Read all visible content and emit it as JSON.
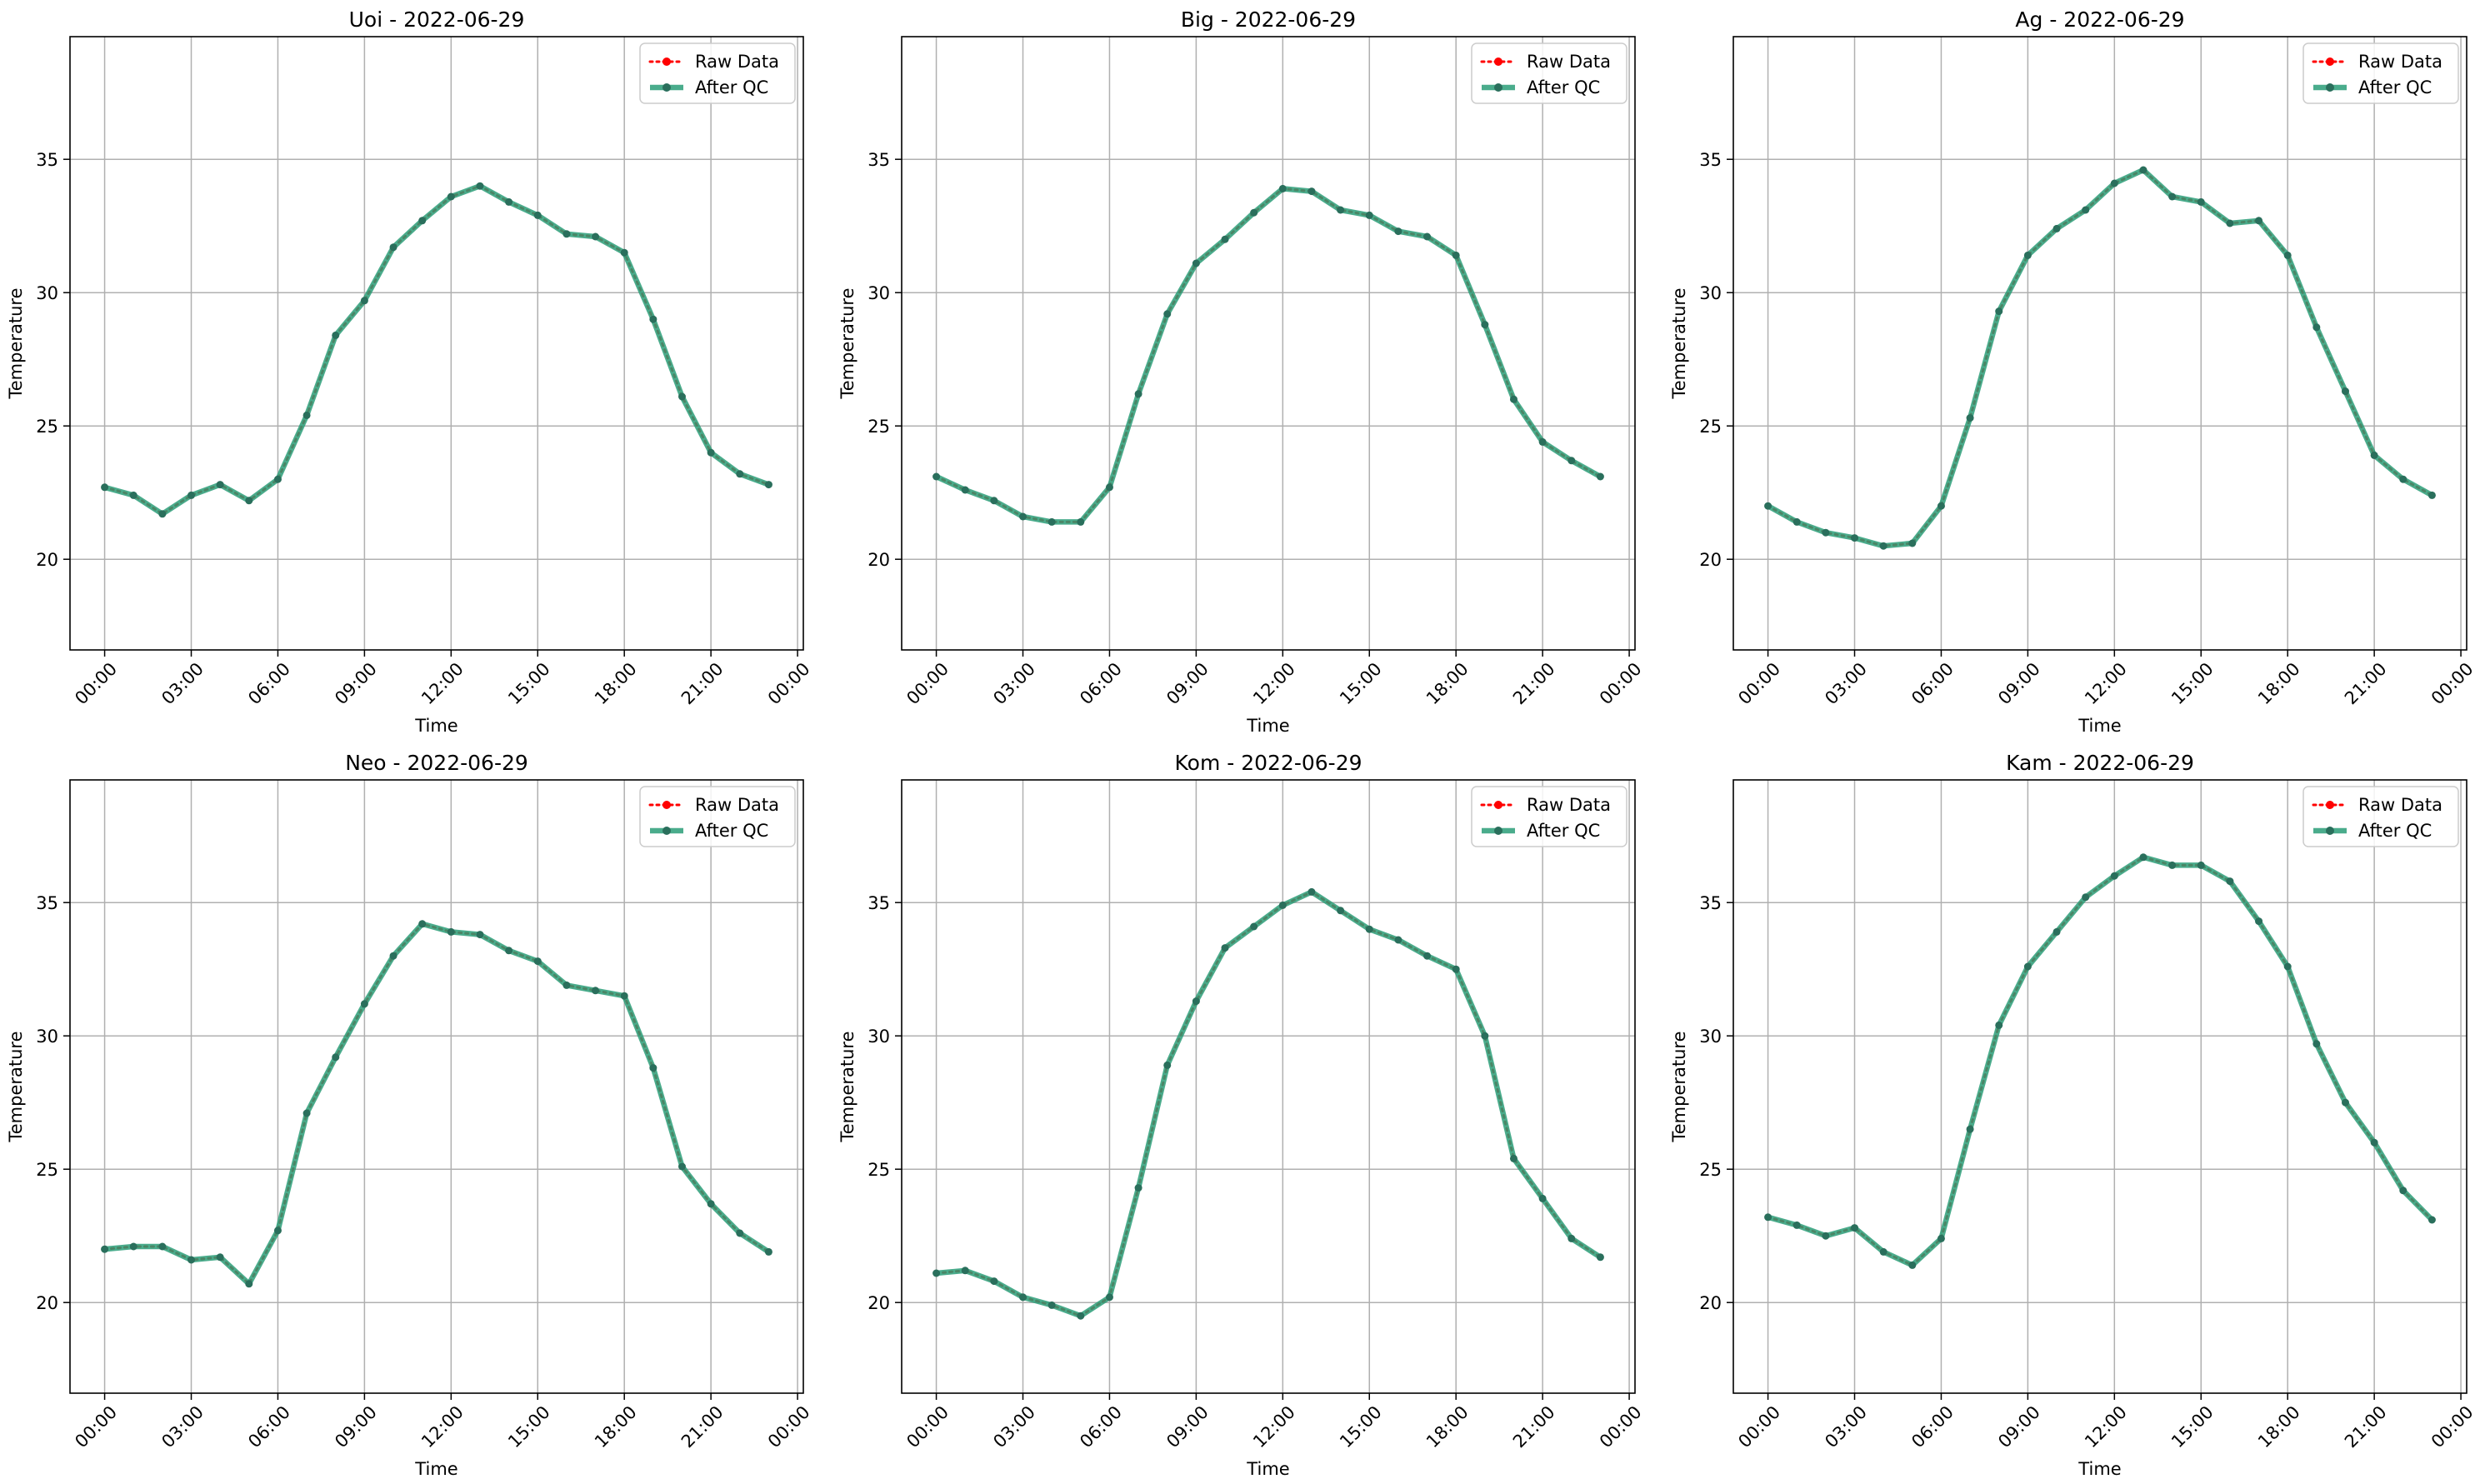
{
  "figure": {
    "legend": {
      "raw_label": "Raw Data",
      "qc_label": "After QC",
      "placement": "upper right"
    },
    "colors": {
      "raw": "#ff0000",
      "qc": "#2a9d78",
      "qc_marker": "#2a6f5c",
      "grid": "#b0b0b0",
      "frame": "#000000"
    }
  },
  "chart_data": [
    {
      "type": "line",
      "title": "Uoi - 2022-06-29",
      "xlabel": "Time",
      "ylabel": "Temperature",
      "xticks": [
        "00:00",
        "03:00",
        "06:00",
        "09:00",
        "12:00",
        "15:00",
        "18:00",
        "21:00",
        "00:00"
      ],
      "yticks": [
        20,
        25,
        30,
        35
      ],
      "xlim": [
        -1.2,
        24.2
      ],
      "ylim": [
        16.6,
        39.6
      ],
      "grid": true,
      "x": [
        0,
        1,
        2,
        3,
        4,
        5,
        6,
        7,
        8,
        9,
        10,
        11,
        12,
        13,
        14,
        15,
        16,
        17,
        18,
        19,
        20,
        21,
        22,
        23
      ],
      "series": [
        {
          "name": "Raw Data",
          "values": [
            22.7,
            22.4,
            21.7,
            22.4,
            22.8,
            22.2,
            23.0,
            25.4,
            28.4,
            29.7,
            31.7,
            32.7,
            33.6,
            34.0,
            33.4,
            32.9,
            32.2,
            32.1,
            31.5,
            29.0,
            26.1,
            24.0,
            23.2,
            22.8
          ]
        },
        {
          "name": "After QC",
          "values": [
            22.7,
            22.4,
            21.7,
            22.4,
            22.8,
            22.2,
            23.0,
            25.4,
            28.4,
            29.7,
            31.7,
            32.7,
            33.6,
            34.0,
            33.4,
            32.9,
            32.2,
            32.1,
            31.5,
            29.0,
            26.1,
            24.0,
            23.2,
            22.8
          ]
        }
      ]
    },
    {
      "type": "line",
      "title": "Big - 2022-06-29",
      "xlabel": "Time",
      "ylabel": "Temperature",
      "xticks": [
        "00:00",
        "03:00",
        "06:00",
        "09:00",
        "12:00",
        "15:00",
        "18:00",
        "21:00",
        "00:00"
      ],
      "yticks": [
        20,
        25,
        30,
        35
      ],
      "xlim": [
        -1.2,
        24.2
      ],
      "ylim": [
        16.6,
        39.6
      ],
      "grid": true,
      "x": [
        0,
        1,
        2,
        3,
        4,
        5,
        6,
        7,
        8,
        9,
        10,
        11,
        12,
        13,
        14,
        15,
        16,
        17,
        18,
        19,
        20,
        21,
        22,
        23
      ],
      "series": [
        {
          "name": "Raw Data",
          "values": [
            23.1,
            22.6,
            22.2,
            21.6,
            21.4,
            21.4,
            22.7,
            26.2,
            29.2,
            31.1,
            32.0,
            33.0,
            33.9,
            33.8,
            33.1,
            32.9,
            32.3,
            32.1,
            31.4,
            28.8,
            26.0,
            24.4,
            23.7,
            23.1
          ]
        },
        {
          "name": "After QC",
          "values": [
            23.1,
            22.6,
            22.2,
            21.6,
            21.4,
            21.4,
            22.7,
            26.2,
            29.2,
            31.1,
            32.0,
            33.0,
            33.9,
            33.8,
            33.1,
            32.9,
            32.3,
            32.1,
            31.4,
            28.8,
            26.0,
            24.4,
            23.7,
            23.1
          ]
        }
      ]
    },
    {
      "type": "line",
      "title": "Ag - 2022-06-29",
      "xlabel": "Time",
      "ylabel": "Temperature",
      "xticks": [
        "00:00",
        "03:00",
        "06:00",
        "09:00",
        "12:00",
        "15:00",
        "18:00",
        "21:00",
        "00:00"
      ],
      "yticks": [
        20,
        25,
        30,
        35
      ],
      "xlim": [
        -1.2,
        24.2
      ],
      "ylim": [
        16.6,
        39.6
      ],
      "grid": true,
      "x": [
        0,
        1,
        2,
        3,
        4,
        5,
        6,
        7,
        8,
        9,
        10,
        11,
        12,
        13,
        14,
        15,
        16,
        17,
        18,
        19,
        20,
        21,
        22,
        23
      ],
      "series": [
        {
          "name": "Raw Data",
          "values": [
            22.0,
            21.4,
            21.0,
            20.8,
            20.5,
            20.6,
            22.0,
            25.3,
            29.3,
            31.4,
            32.4,
            33.1,
            34.1,
            34.6,
            33.6,
            33.4,
            32.6,
            32.7,
            31.4,
            28.7,
            26.3,
            23.9,
            23.0,
            22.4
          ]
        },
        {
          "name": "After QC",
          "values": [
            22.0,
            21.4,
            21.0,
            20.8,
            20.5,
            20.6,
            22.0,
            25.3,
            29.3,
            31.4,
            32.4,
            33.1,
            34.1,
            34.6,
            33.6,
            33.4,
            32.6,
            32.7,
            31.4,
            28.7,
            26.3,
            23.9,
            23.0,
            22.4
          ]
        }
      ]
    },
    {
      "type": "line",
      "title": "Neo - 2022-06-29",
      "xlabel": "Time",
      "ylabel": "Temperature",
      "xticks": [
        "00:00",
        "03:00",
        "06:00",
        "09:00",
        "12:00",
        "15:00",
        "18:00",
        "21:00",
        "00:00"
      ],
      "yticks": [
        20,
        25,
        30,
        35
      ],
      "xlim": [
        -1.2,
        24.2
      ],
      "ylim": [
        16.6,
        39.6
      ],
      "grid": true,
      "x": [
        0,
        1,
        2,
        3,
        4,
        5,
        6,
        7,
        8,
        9,
        10,
        11,
        12,
        13,
        14,
        15,
        16,
        17,
        18,
        19,
        20,
        21,
        22,
        23
      ],
      "series": [
        {
          "name": "Raw Data",
          "values": [
            22.0,
            22.1,
            22.1,
            21.6,
            21.7,
            20.7,
            22.7,
            27.1,
            29.2,
            31.2,
            33.0,
            34.2,
            33.9,
            33.8,
            33.2,
            32.8,
            31.9,
            31.7,
            31.5,
            28.8,
            25.1,
            23.7,
            22.6,
            21.9
          ]
        },
        {
          "name": "After QC",
          "values": [
            22.0,
            22.1,
            22.1,
            21.6,
            21.7,
            20.7,
            22.7,
            27.1,
            29.2,
            31.2,
            33.0,
            34.2,
            33.9,
            33.8,
            33.2,
            32.8,
            31.9,
            31.7,
            31.5,
            28.8,
            25.1,
            23.7,
            22.6,
            21.9
          ]
        }
      ]
    },
    {
      "type": "line",
      "title": "Kom - 2022-06-29",
      "xlabel": "Time",
      "ylabel": "Temperature",
      "xticks": [
        "00:00",
        "03:00",
        "06:00",
        "09:00",
        "12:00",
        "15:00",
        "18:00",
        "21:00",
        "00:00"
      ],
      "yticks": [
        20,
        25,
        30,
        35
      ],
      "xlim": [
        -1.2,
        24.2
      ],
      "ylim": [
        16.6,
        39.6
      ],
      "grid": true,
      "x": [
        0,
        1,
        2,
        3,
        4,
        5,
        6,
        7,
        8,
        9,
        10,
        11,
        12,
        13,
        14,
        15,
        16,
        17,
        18,
        19,
        20,
        21,
        22,
        23
      ],
      "series": [
        {
          "name": "Raw Data",
          "values": [
            21.1,
            21.2,
            20.8,
            20.2,
            19.9,
            19.5,
            20.2,
            24.3,
            28.9,
            31.3,
            33.3,
            34.1,
            34.9,
            35.4,
            34.7,
            34.0,
            33.6,
            33.0,
            32.5,
            30.0,
            25.4,
            23.9,
            22.4,
            21.7
          ]
        },
        {
          "name": "After QC",
          "values": [
            21.1,
            21.2,
            20.8,
            20.2,
            19.9,
            19.5,
            20.2,
            24.3,
            28.9,
            31.3,
            33.3,
            34.1,
            34.9,
            35.4,
            34.7,
            34.0,
            33.6,
            33.0,
            32.5,
            30.0,
            25.4,
            23.9,
            22.4,
            21.7
          ]
        }
      ]
    },
    {
      "type": "line",
      "title": "Kam - 2022-06-29",
      "xlabel": "Time",
      "ylabel": "Temperature",
      "xticks": [
        "00:00",
        "03:00",
        "06:00",
        "09:00",
        "12:00",
        "15:00",
        "18:00",
        "21:00",
        "00:00"
      ],
      "yticks": [
        20,
        25,
        30,
        35
      ],
      "xlim": [
        -1.2,
        24.2
      ],
      "ylim": [
        16.6,
        39.6
      ],
      "grid": true,
      "x": [
        0,
        1,
        2,
        3,
        4,
        5,
        6,
        7,
        8,
        9,
        10,
        11,
        12,
        13,
        14,
        15,
        16,
        17,
        18,
        19,
        20,
        21,
        22,
        23
      ],
      "series": [
        {
          "name": "Raw Data",
          "values": [
            23.2,
            22.9,
            22.5,
            22.8,
            21.9,
            21.4,
            22.4,
            26.5,
            30.4,
            32.6,
            33.9,
            35.2,
            36.0,
            36.7,
            36.4,
            36.4,
            35.8,
            34.3,
            32.6,
            29.7,
            27.5,
            26.0,
            24.2,
            23.1
          ]
        },
        {
          "name": "After QC",
          "values": [
            23.2,
            22.9,
            22.5,
            22.8,
            21.9,
            21.4,
            22.4,
            26.5,
            30.4,
            32.6,
            33.9,
            35.2,
            36.0,
            36.7,
            36.4,
            36.4,
            35.8,
            34.3,
            32.6,
            29.7,
            27.5,
            26.0,
            24.2,
            23.1
          ]
        }
      ]
    }
  ]
}
